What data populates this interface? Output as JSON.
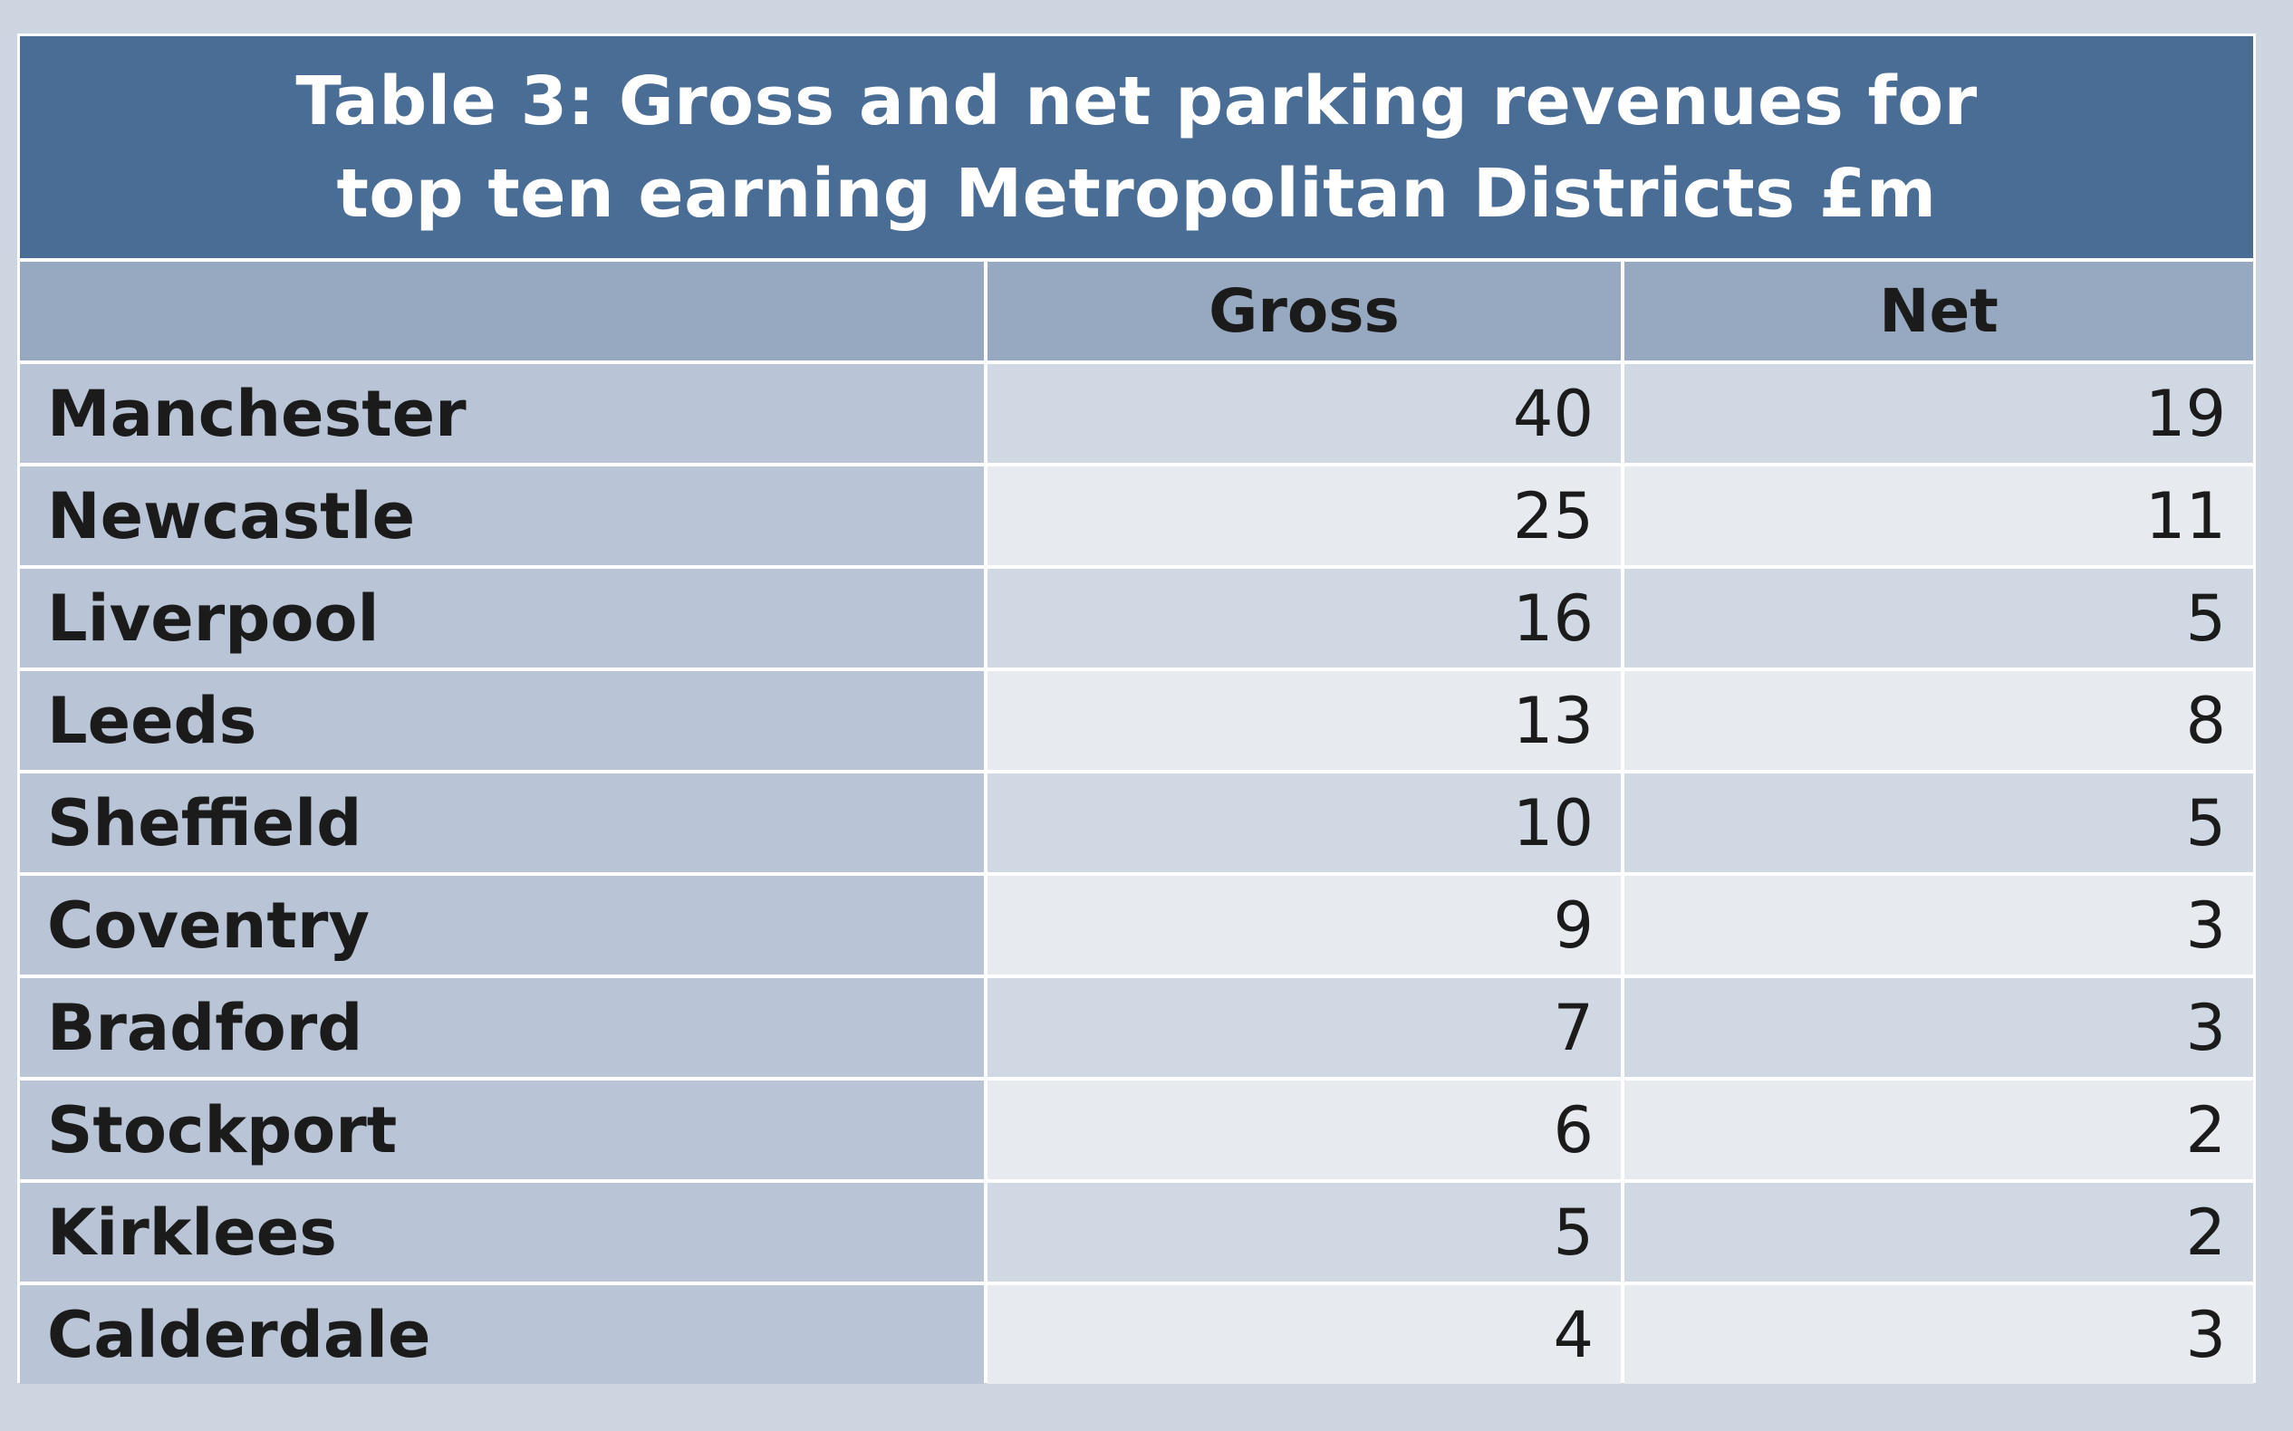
{
  "chart_data": {
    "type": "table",
    "title": "Table 3: Gross and net parking revenues for\ntop ten earning Metropolitan Districts £m",
    "columns": [
      "",
      "Gross",
      "Net"
    ],
    "rows": [
      {
        "district": "Manchester",
        "gross": "40",
        "net": "19"
      },
      {
        "district": "Newcastle",
        "gross": "25",
        "net": "11"
      },
      {
        "district": "Liverpool",
        "gross": "16",
        "net": "5"
      },
      {
        "district": "Leeds",
        "gross": "13",
        "net": "8"
      },
      {
        "district": "Sheffield",
        "gross": "10",
        "net": "5"
      },
      {
        "district": "Coventry",
        "gross": "9",
        "net": "3"
      },
      {
        "district": "Bradford",
        "gross": "7",
        "net": "3"
      },
      {
        "district": "Stockport",
        "gross": "6",
        "net": "2"
      },
      {
        "district": "Kirklees",
        "gross": "5",
        "net": "2"
      },
      {
        "district": "Calderdale",
        "gross": "4",
        "net": "3"
      }
    ]
  },
  "colors": {
    "title_bg": "#4a6d96",
    "header_bg": "#97a8c1",
    "name_col_bg": "#b9c4d6",
    "row_odd_bg": "#d0d8e3",
    "row_even_bg": "#e7eaef",
    "page_bg": "#cdd6e0"
  }
}
